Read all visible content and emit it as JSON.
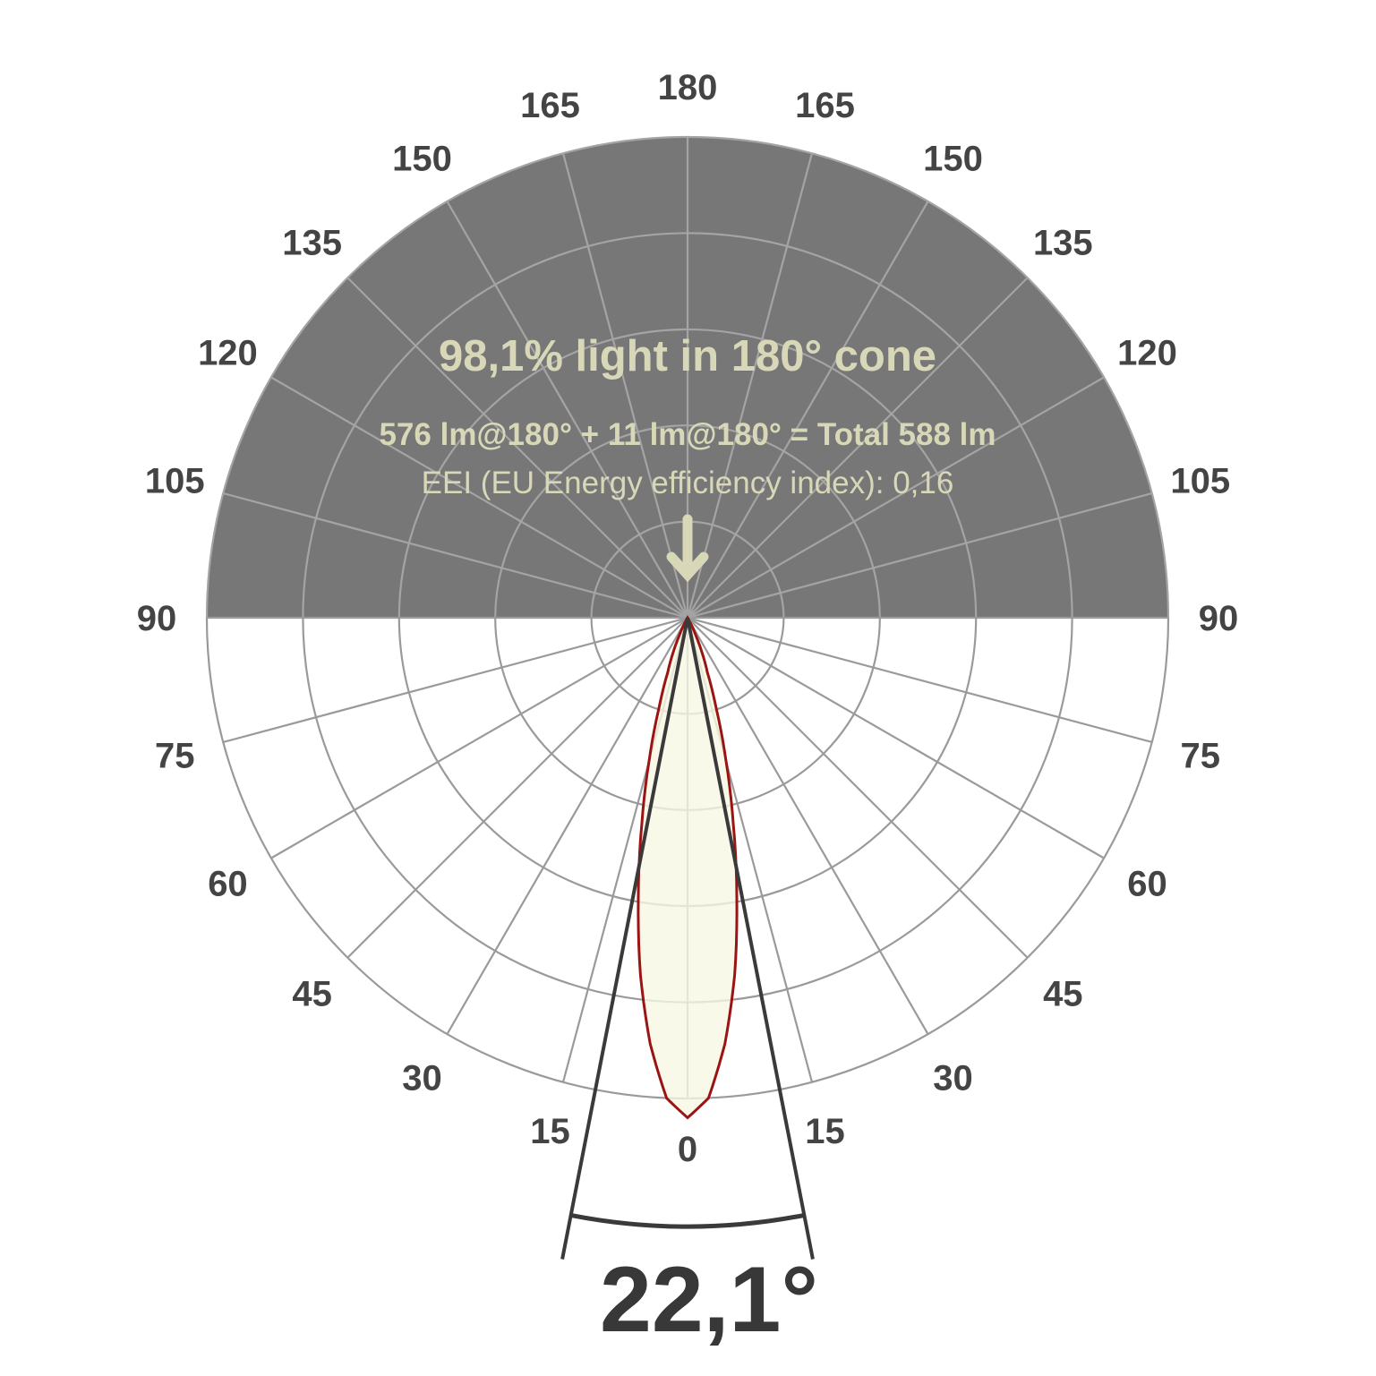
{
  "chart_data": {
    "type": "polar",
    "title": "98,1% light in 180° cone",
    "subtitle": "576 lm@180° + 11 lm@180° = Total 588 lm",
    "note": "EEI (EU Energy efficiency index): 0,16",
    "beam_angle_label": "22,1°",
    "beam_angle_deg": 22.1,
    "angle_ticks": [
      0,
      15,
      30,
      45,
      60,
      75,
      90,
      105,
      120,
      135,
      150,
      165,
      180
    ],
    "rings": 5,
    "series": [
      {
        "angles_deg": [
          0,
          2.5,
          5,
          7.5,
          10,
          12.5,
          15,
          17.5,
          20,
          25,
          30
        ],
        "relative_intensity": [
          1.04,
          1.0,
          0.89,
          0.75,
          0.59,
          0.44,
          0.31,
          0.2,
          0.12,
          0.04,
          0.0
        ]
      }
    ],
    "colors": {
      "upper_half": "#777777",
      "lobe_fill": "#f8f8e4",
      "lobe_stroke": "#9b1414",
      "text_light": "#d8d8b8",
      "labels": "#444444",
      "beam_lines": "#3a3a3a"
    }
  }
}
